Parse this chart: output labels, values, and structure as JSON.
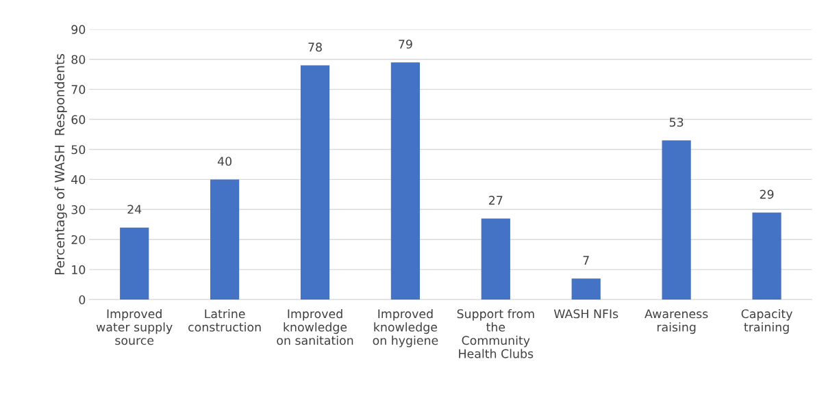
{
  "chart_data": {
    "type": "bar",
    "ylabel": "Percentage of WASH  Respondents",
    "categories": [
      "Improved\nwater supply\nsource",
      "Latrine\nconstruction",
      "Improved\nknowledge\non sanitation",
      "Improved\nknowledge\non hygiene",
      "Support from\nthe\nCommunity\nHealth Clubs",
      "WASH NFIs",
      "Awareness\nraising",
      "Capacity\ntraining"
    ],
    "values": [
      24,
      40,
      78,
      79,
      27,
      7,
      53,
      29
    ],
    "color": "#4472c4",
    "ylim": [
      0,
      90
    ],
    "yticks": [
      0,
      10,
      20,
      30,
      40,
      50,
      60,
      70,
      80,
      90
    ],
    "grid": "y",
    "data_labels": true
  }
}
